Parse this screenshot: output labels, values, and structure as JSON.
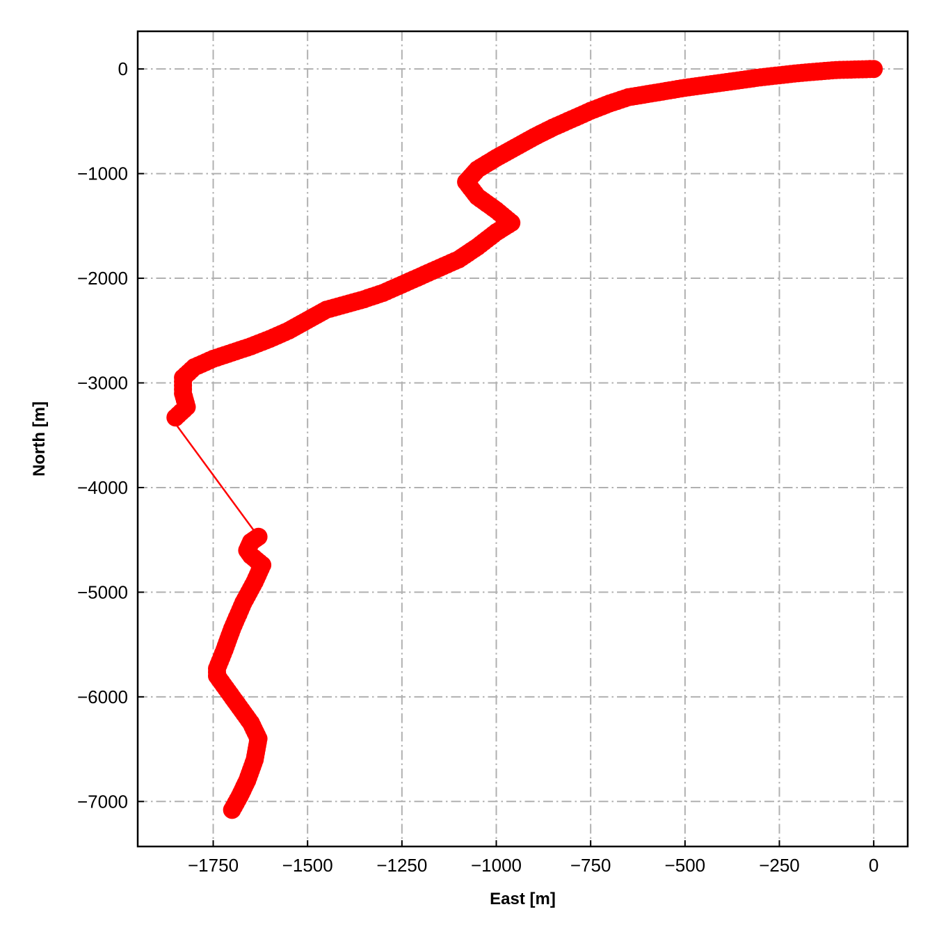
{
  "chart_data": {
    "type": "scatter",
    "title": "",
    "xlabel": "East [m]",
    "ylabel": "North [m]",
    "xlim": [
      -1950,
      90
    ],
    "ylim": [
      -7430,
      360
    ],
    "xticks": [
      -1750,
      -1500,
      -1250,
      -1000,
      -750,
      -500,
      -250,
      0
    ],
    "xtick_labels": [
      "−1750",
      "−1500",
      "−1250",
      "−1000",
      "−750",
      "−500",
      "−250",
      "0"
    ],
    "yticks": [
      0,
      -1000,
      -2000,
      -3000,
      -4000,
      -5000,
      -6000,
      -7000
    ],
    "ytick_labels": [
      "0",
      "−1000",
      "−2000",
      "−3000",
      "−4000",
      "−5000",
      "−6000",
      "−7000"
    ],
    "grid": true,
    "grid_style": "dashdot",
    "colors": {
      "track": "#ff0000",
      "grid": "#b0b0b0",
      "axes": "#000000"
    },
    "series": [
      {
        "points": [
          [
            0,
            0
          ],
          [
            -50,
            -5
          ],
          [
            -100,
            -10
          ],
          [
            -150,
            -25
          ],
          [
            -200,
            -40
          ],
          [
            -250,
            -60
          ],
          [
            -300,
            -80
          ],
          [
            -350,
            -105
          ],
          [
            -400,
            -130
          ],
          [
            -450,
            -155
          ],
          [
            -500,
            -180
          ],
          [
            -550,
            -210
          ],
          [
            -600,
            -240
          ],
          [
            -650,
            -270
          ],
          [
            -700,
            -330
          ],
          [
            -750,
            -400
          ],
          [
            -800,
            -480
          ],
          [
            -850,
            -560
          ],
          [
            -900,
            -650
          ],
          [
            -950,
            -750
          ],
          [
            -1000,
            -850
          ],
          [
            -1050,
            -960
          ],
          [
            -1080,
            -1080
          ],
          [
            -1050,
            -1220
          ],
          [
            -1000,
            -1350
          ],
          [
            -960,
            -1470
          ],
          [
            -1000,
            -1560
          ],
          [
            -1050,
            -1700
          ],
          [
            -1100,
            -1820
          ],
          [
            -1150,
            -1900
          ],
          [
            -1200,
            -1980
          ],
          [
            -1250,
            -2060
          ],
          [
            -1300,
            -2140
          ],
          [
            -1350,
            -2200
          ],
          [
            -1400,
            -2250
          ],
          [
            -1450,
            -2300
          ],
          [
            -1500,
            -2400
          ],
          [
            -1550,
            -2500
          ],
          [
            -1600,
            -2580
          ],
          [
            -1650,
            -2650
          ],
          [
            -1700,
            -2710
          ],
          [
            -1750,
            -2770
          ],
          [
            -1800,
            -2850
          ],
          [
            -1830,
            -2950
          ],
          [
            -1830,
            -3100
          ],
          [
            -1820,
            -3230
          ],
          [
            -1850,
            -3330
          ],
          [
            -1860,
            -3340
          ],
          [
            -1630,
            -4470
          ],
          [
            -1650,
            -4520
          ],
          [
            -1660,
            -4600
          ],
          [
            -1650,
            -4650
          ],
          [
            -1620,
            -4740
          ],
          [
            -1640,
            -4900
          ],
          [
            -1670,
            -5100
          ],
          [
            -1700,
            -5350
          ],
          [
            -1720,
            -5550
          ],
          [
            -1740,
            -5730
          ],
          [
            -1740,
            -5800
          ],
          [
            -1710,
            -5950
          ],
          [
            -1680,
            -6100
          ],
          [
            -1650,
            -6250
          ],
          [
            -1630,
            -6400
          ],
          [
            -1640,
            -6600
          ],
          [
            -1660,
            -6800
          ],
          [
            -1680,
            -6950
          ],
          [
            -1700,
            -7080
          ]
        ]
      }
    ]
  }
}
